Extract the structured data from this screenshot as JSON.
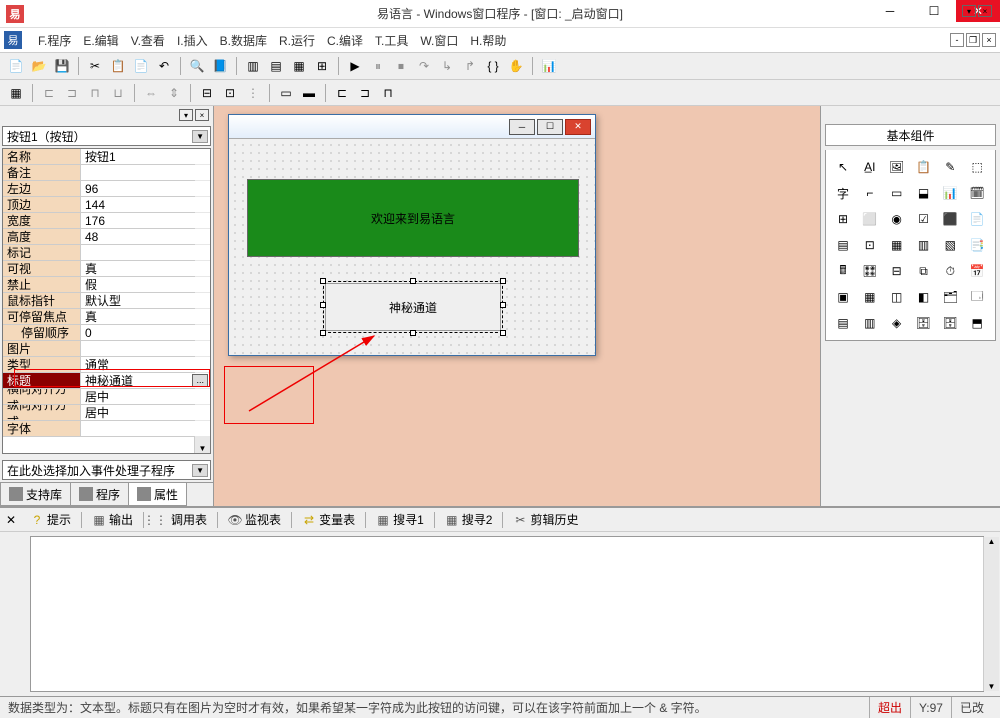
{
  "title": "易语言 - Windows窗口程序 - [窗口: _启动窗口]",
  "menus": [
    "F.程序",
    "E.编辑",
    "V.查看",
    "I.插入",
    "B.数据库",
    "R.运行",
    "C.编译",
    "T.工具",
    "W.窗口",
    "H.帮助"
  ],
  "combo_object": "按钮1（按钮）",
  "properties": [
    {
      "name": "名称",
      "value": "按钮1"
    },
    {
      "name": "备注",
      "value": ""
    },
    {
      "name": "左边",
      "value": "96"
    },
    {
      "name": "顶边",
      "value": "144"
    },
    {
      "name": "宽度",
      "value": "176"
    },
    {
      "name": "高度",
      "value": "48"
    },
    {
      "name": "标记",
      "value": ""
    },
    {
      "name": "可视",
      "value": "真"
    },
    {
      "name": "禁止",
      "value": "假"
    },
    {
      "name": "鼠标指针",
      "value": "默认型"
    },
    {
      "name": "可停留焦点",
      "value": "真"
    },
    {
      "name": "停留顺序",
      "value": "0",
      "indent": true
    },
    {
      "name": "图片",
      "value": ""
    },
    {
      "name": "类型",
      "value": "通常"
    },
    {
      "name": "标题",
      "value": "神秘通道",
      "selected": true,
      "dots": true
    },
    {
      "name": "横向对齐方式",
      "value": "居中"
    },
    {
      "name": "纵向对齐方式",
      "value": "居中"
    },
    {
      "name": "字体",
      "value": ""
    }
  ],
  "event_combo": "在此处选择加入事件处理子程序",
  "left_tabs": [
    {
      "label": "支持库"
    },
    {
      "label": "程序"
    },
    {
      "label": "属性",
      "active": true
    }
  ],
  "design": {
    "label_text": "欢迎来到易语言",
    "button_text": "神秘通道",
    "colors": {
      "label_bg": "#1a8a1a",
      "canvas_bg": "#efc7b1"
    }
  },
  "right_panel_title": "基本组件",
  "components": [
    "↖",
    "A̲I",
    "🖼",
    "📋",
    "✎",
    "⬚",
    "字",
    "⌐",
    "▭",
    "⬓",
    "📊",
    "🗓",
    "⊞",
    "⬜",
    "◉",
    "☑",
    "⬛",
    "📄",
    "▤",
    "⊡",
    "▦",
    "▥",
    "▧",
    "📑",
    "🖩",
    "🎛",
    "⊟",
    "⧉",
    "⏱",
    "📅",
    "▣",
    "▦",
    "◫",
    "◧",
    "🗂",
    "🗔",
    "▤",
    "▥",
    "◈",
    "🗄",
    "🗄",
    "⬒"
  ],
  "bottom_tabs": [
    {
      "icon": "?",
      "label": "提示",
      "color": "#c9a400"
    },
    {
      "icon": "▦",
      "label": "输出"
    },
    {
      "icon": "⋮⋮⋮",
      "label": "调用表"
    },
    {
      "icon": "👁",
      "label": "监视表"
    },
    {
      "icon": "⇄",
      "label": "变量表",
      "color": "#c9a400"
    },
    {
      "icon": "▦",
      "label": "搜寻1"
    },
    {
      "icon": "▦",
      "label": "搜寻2"
    },
    {
      "icon": "✂",
      "label": "剪辑历史"
    }
  ],
  "status": {
    "text": "数据类型为：文本型。标题只有在图片为空时才有效，如果希望某一字符成为此按钮的访问键，可以在该字符前面加上一个 & 字符。",
    "overflow": "超出",
    "y": "Y:97",
    "mod": "已改"
  }
}
